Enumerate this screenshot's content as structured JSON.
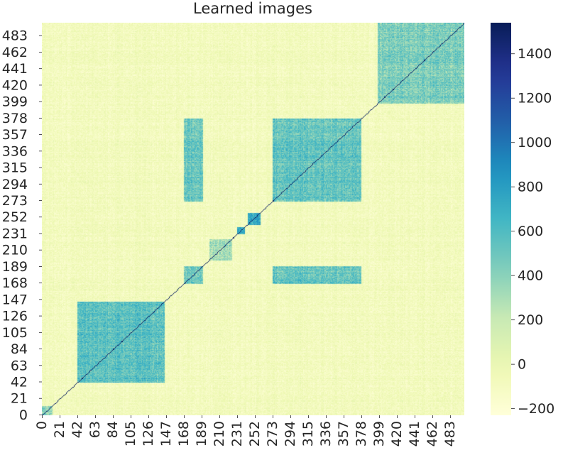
{
  "chart_data": {
    "type": "heatmap",
    "title": "Learned images",
    "n": 500,
    "x_ticks": [
      0,
      21,
      42,
      63,
      84,
      105,
      126,
      147,
      168,
      189,
      210,
      231,
      252,
      273,
      294,
      315,
      336,
      357,
      378,
      399,
      420,
      441,
      462,
      483
    ],
    "y_ticks": [
      0,
      21,
      42,
      63,
      84,
      105,
      126,
      147,
      168,
      189,
      210,
      231,
      252,
      273,
      294,
      315,
      336,
      357,
      378,
      399,
      420,
      441,
      462,
      483
    ],
    "colorbar": {
      "vmin": -230,
      "vmax": 1540,
      "ticks": [
        -200,
        0,
        200,
        400,
        600,
        800,
        1000,
        1200,
        1400
      ],
      "colormap": "YlGnBu"
    },
    "diagonal_value": 1500,
    "background_value": -80,
    "blocks": [
      {
        "rows": [
          0,
          12
        ],
        "cols": [
          0,
          12
        ],
        "value": 350
      },
      {
        "rows": [
          42,
          145
        ],
        "cols": [
          42,
          145
        ],
        "value": 550
      },
      {
        "rows": [
          168,
          190
        ],
        "cols": [
          168,
          190
        ],
        "value": 500
      },
      {
        "rows": [
          198,
          225
        ],
        "cols": [
          198,
          225
        ],
        "value": 300
      },
      {
        "rows": [
          231,
          240
        ],
        "cols": [
          231,
          240
        ],
        "value": 700
      },
      {
        "rows": [
          243,
          258
        ],
        "cols": [
          243,
          258
        ],
        "value": 750
      },
      {
        "rows": [
          273,
          378
        ],
        "cols": [
          273,
          378
        ],
        "value": 520
      },
      {
        "rows": [
          168,
          190
        ],
        "cols": [
          273,
          378
        ],
        "value": 520
      },
      {
        "rows": [
          273,
          378
        ],
        "cols": [
          168,
          190
        ],
        "value": 520
      },
      {
        "rows": [
          397,
          500
        ],
        "cols": [
          397,
          500
        ],
        "value": 440
      }
    ]
  }
}
